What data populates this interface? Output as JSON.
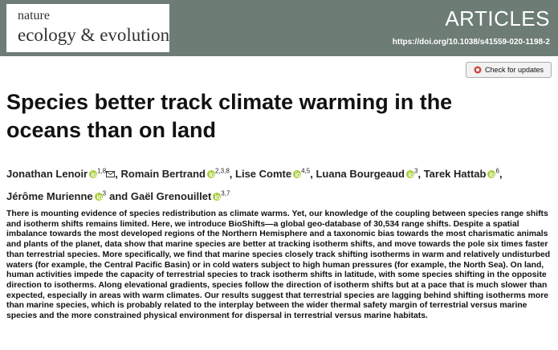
{
  "header": {
    "journal_line1": "nature",
    "journal_line2": "ecology & evolution",
    "section": "ARTICLES",
    "doi": "https://doi.org/10.1038/s41559-020-1198-2",
    "check_updates": "Check for updates"
  },
  "title": "Species better track climate warming in the oceans than on land",
  "authors": [
    {
      "name": "Jonathan Lenoir",
      "affiliations": "1,8",
      "sep": ","
    },
    {
      "name": "Romain Bertrand",
      "affiliations": "2,3,8",
      "sep": ","
    },
    {
      "name": "Lise Comte",
      "affiliations": "4,5",
      "sep": ","
    },
    {
      "name": "Luana Bourgeaud",
      "affiliations": "3",
      "sep": ","
    },
    {
      "name": "Tarek Hattab",
      "affiliations": "6",
      "sep": ","
    },
    {
      "name": "Jérôme Murienne",
      "affiliations": "3",
      "sep": "and"
    },
    {
      "name": "Gaël Grenouillet",
      "affiliations": "3,7"
    }
  ],
  "abstract": "There is mounting evidence of species redistribution as climate warms. Yet, our knowledge of the coupling between species range shifts and isotherm shifts remains limited. Here, we introduce BioShifts—a global geo-database of 30,534 range shifts. Despite a spatial imbalance towards the most developed regions of the Northern Hemisphere and a taxonomic bias towards the most charismatic animals and plants of the planet, data show that marine species are better at tracking isotherm shifts, and move towards the pole six times faster than terrestrial species. More specifically, we find that marine species closely track shifting isotherms in warm and relatively undisturbed waters (for example, the Central Pacific Basin) or in cold waters subject to high human pressures (for example, the North Sea). On land, human activities impede the capacity of terrestrial species to track isotherm shifts in latitude, with some species shifting in the opposite direction to isotherms. Along elevational gradients, species follow the direction of isotherm shifts but at a pace that is much slower than expected, especially in areas with warm climates. Our results suggest that terrestrial species are lagging behind shifting isotherms more than marine species, which is probably related to the interplay between the wider thermal safety margin of terrestrial versus marine species and the more constrained physical environment for dispersal in terrestrial versus marine habitats."
}
